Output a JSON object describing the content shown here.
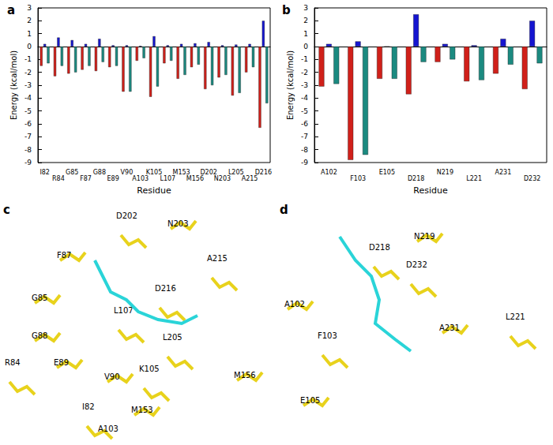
{
  "chart_data": [
    {
      "type": "bar",
      "title": "a",
      "x_label": "Residue",
      "y_label": "Energy (kcal/mol)",
      "categories": [
        "I82",
        "R84",
        "G85",
        "F87",
        "G88",
        "E89",
        "V90",
        "A103",
        "K105",
        "L107",
        "M153",
        "M156",
        "D202",
        "N203",
        "L205",
        "A215",
        "D216"
      ],
      "series": [
        {
          "color": "#d0201a",
          "values": [
            -1.5,
            -2.3,
            -2.1,
            -1.8,
            -1.9,
            -1.6,
            -3.5,
            -1.1,
            -3.9,
            -1.3,
            -2.5,
            -1.6,
            -3.3,
            -2.4,
            -3.8,
            -2.0,
            -6.3
          ]
        },
        {
          "color": "#1515d0",
          "values": [
            0.2,
            0.7,
            0.5,
            0.2,
            0.6,
            0.1,
            0.1,
            0.05,
            0.8,
            0.1,
            0.2,
            0.25,
            0.35,
            0.1,
            0.15,
            0.2,
            2.0
          ]
        },
        {
          "color": "#1b8a80",
          "values": [
            -1.3,
            -1.5,
            -2.0,
            -1.5,
            -1.2,
            -1.5,
            -3.5,
            -0.9,
            -3.1,
            -1.1,
            -2.2,
            -1.4,
            -3.0,
            -2.2,
            -3.6,
            -1.6,
            -4.4
          ]
        }
      ],
      "ylim": [
        -9,
        3
      ],
      "yticks": [
        3,
        2,
        1,
        0,
        -1,
        -2,
        -3,
        -4,
        -5,
        -6,
        -7,
        -8,
        -9
      ]
    },
    {
      "type": "bar",
      "title": "b",
      "x_label": "Residue",
      "y_label": "Energy (kcal/mol)",
      "categories": [
        "A102",
        "F103",
        "E105",
        "D218",
        "N219",
        "L221",
        "A231",
        "D232"
      ],
      "series": [
        {
          "color": "#d0201a",
          "values": [
            -3.1,
            -8.8,
            -2.5,
            -3.7,
            -1.2,
            -2.7,
            -2.1,
            -3.3
          ]
        },
        {
          "color": "#1515d0",
          "values": [
            0.2,
            0.4,
            0,
            2.5,
            0.2,
            0.1,
            0.6,
            2.0
          ]
        },
        {
          "color": "#1b8a80",
          "values": [
            -2.9,
            -8.4,
            -2.5,
            -1.2,
            -1.0,
            -2.6,
            -1.4,
            -1.3
          ]
        }
      ],
      "ylim": [
        -9,
        3
      ],
      "yticks": [
        3,
        2,
        1,
        0,
        -1,
        -2,
        -3,
        -4,
        -5,
        -6,
        -7,
        -8,
        -9
      ]
    }
  ],
  "structures": [
    {
      "title": "c",
      "labels": [
        "D202",
        "N203",
        "A215",
        "F87",
        "D216",
        "G85",
        "L107",
        "G88",
        "R84",
        "E89",
        "L205",
        "V90",
        "K105",
        "M156",
        "I82",
        "M153",
        "A103"
      ]
    },
    {
      "title": "d",
      "labels": [
        "D218",
        "N219",
        "D232",
        "A102",
        "F103",
        "A231",
        "L221",
        "E105"
      ]
    }
  ]
}
